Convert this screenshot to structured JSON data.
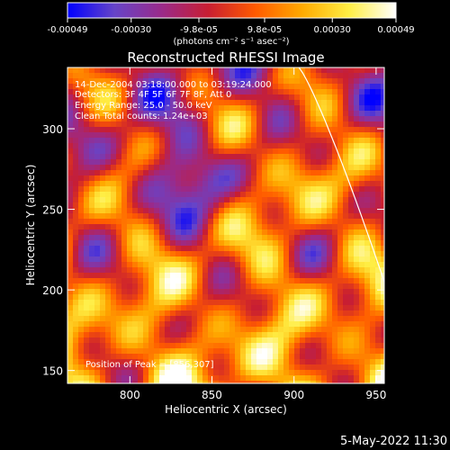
{
  "chart_data": {
    "type": "heatmap",
    "title": "Reconstructed RHESSI Image",
    "xlabel": "Heliocentric X (arcsec)",
    "ylabel": "Heliocentric Y (arcsec)",
    "xlim": [
      762,
      955
    ],
    "ylim": [
      142,
      338
    ],
    "x_ticks": [
      800,
      850,
      900,
      950
    ],
    "y_ticks": [
      150,
      200,
      250,
      300
    ],
    "x_tick_labels": [
      "800",
      "850",
      "900",
      "950"
    ],
    "y_tick_labels": [
      "150",
      "200",
      "250",
      "300"
    ],
    "colorbar": {
      "range": [
        -0.00049,
        0.00049
      ],
      "tick_values": [
        -0.00049,
        -0.0003,
        -9.8e-05,
        9.8e-05,
        0.0003,
        0.00049
      ],
      "tick_labels": [
        "-0.00049",
        "-0.00030",
        "-9.8e-05",
        "9.8e-05",
        "0.00030",
        "0.00049"
      ],
      "unit_label": "(photons cm⁻² s⁻¹ asec⁻²)"
    },
    "annotations": {
      "time_range": "14-Dec-2004 03:18:00.000 to 03:19:24.000",
      "detectors": "Detectors: 3F 4F 5F 6F 7F 8F, Att 0",
      "energy_range": "Energy Range: 25.0 - 50.0 keV",
      "clean_counts": "Clean     Total counts: 1.24e+03",
      "peak": "Position of Peak = [856,307]"
    },
    "peak": [
      856,
      307
    ],
    "limb_color": "#ffffff",
    "colormap": [
      "#0000ff",
      "#6644c8",
      "#9a2a8a",
      "#c81e32",
      "#ff5a00",
      "#ffaa00",
      "#ffee44",
      "#ffffff"
    ]
  },
  "footer": {
    "timestamp": "5-May-2022 11:30"
  }
}
